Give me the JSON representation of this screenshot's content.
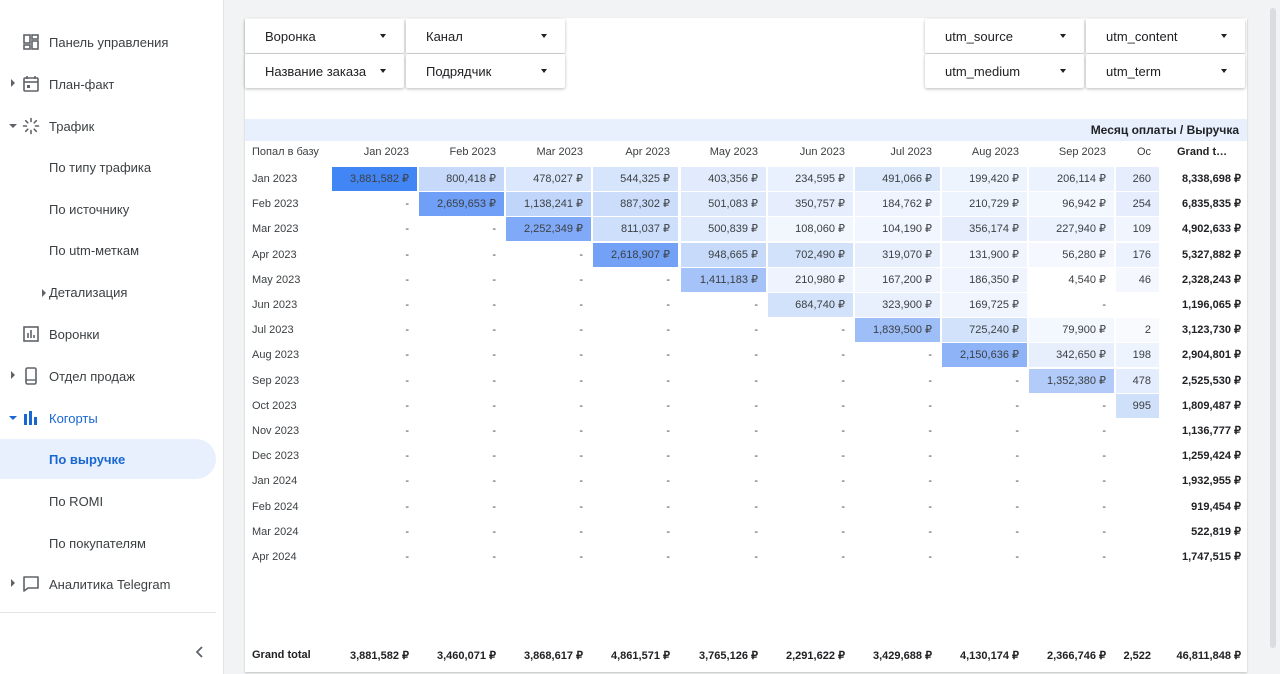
{
  "sidebar": {
    "items": [
      {
        "label": "Панель управления",
        "icon": "dashboard-icon"
      },
      {
        "label": "План-факт",
        "icon": "calendar-icon"
      },
      {
        "label": "Трафик",
        "icon": "traffic-icon"
      },
      {
        "label": "По типу трафика"
      },
      {
        "label": "По источнику"
      },
      {
        "label": "По utm-меткам"
      },
      {
        "label": "Детализация"
      },
      {
        "label": "Воронки",
        "icon": "funnel-chart-icon"
      },
      {
        "label": "Отдел продаж",
        "icon": "phone-icon"
      },
      {
        "label": "Когорты",
        "icon": "bar-chart-icon"
      },
      {
        "label": "По выручке"
      },
      {
        "label": "По ROMI"
      },
      {
        "label": "По покупателям"
      },
      {
        "label": "Аналитика Telegram",
        "icon": "chat-icon"
      }
    ],
    "collapse_icon": "chevron-left-icon"
  },
  "filters": {
    "funnel": "Воронка",
    "channel": "Канал",
    "order_name": "Название заказа",
    "contractor": "Подрядчик",
    "utm_source": "utm_source",
    "utm_content": "utm_content",
    "utm_medium": "utm_medium",
    "utm_term": "utm_term"
  },
  "table": {
    "title": "Месяц оплаты / Выручка",
    "row_header": "Попал в базу",
    "columns": [
      "Jan 2023",
      "Feb 2023",
      "Mar 2023",
      "Apr 2023",
      "May 2023",
      "Jun 2023",
      "Jul 2023",
      "Aug 2023",
      "Sep 2023",
      "Oc"
    ],
    "grand_total_header": "Grand t…",
    "rows": [
      {
        "label": "Jan 2023",
        "cells": [
          "3,881,582 ₽",
          "800,418 ₽",
          "478,027 ₽",
          "544,325 ₽",
          "403,356 ₽",
          "234,595 ₽",
          "491,066 ₽",
          "199,420 ₽",
          "206,114 ₽",
          "260"
        ],
        "total": "8,338,698 ₽"
      },
      {
        "label": "Feb 2023",
        "cells": [
          "-",
          "2,659,653 ₽",
          "1,138,241 ₽",
          "887,302 ₽",
          "501,083 ₽",
          "350,757 ₽",
          "184,762 ₽",
          "210,729 ₽",
          "96,942 ₽",
          "254"
        ],
        "total": "6,835,835 ₽"
      },
      {
        "label": "Mar 2023",
        "cells": [
          "-",
          "-",
          "2,252,349 ₽",
          "811,037 ₽",
          "500,839 ₽",
          "108,060 ₽",
          "104,190 ₽",
          "356,174 ₽",
          "227,940 ₽",
          "109"
        ],
        "total": "4,902,633 ₽"
      },
      {
        "label": "Apr 2023",
        "cells": [
          "-",
          "-",
          "-",
          "2,618,907 ₽",
          "948,665 ₽",
          "702,490 ₽",
          "319,070 ₽",
          "131,900 ₽",
          "56,280 ₽",
          "176"
        ],
        "total": "5,327,882 ₽"
      },
      {
        "label": "May 2023",
        "cells": [
          "-",
          "-",
          "-",
          "-",
          "1,411,183 ₽",
          "210,980 ₽",
          "167,200 ₽",
          "186,350 ₽",
          "4,540 ₽",
          "46"
        ],
        "total": "2,328,243 ₽"
      },
      {
        "label": "Jun 2023",
        "cells": [
          "-",
          "-",
          "-",
          "-",
          "-",
          "684,740 ₽",
          "323,900 ₽",
          "169,725 ₽",
          "-",
          ""
        ],
        "total": "1,196,065 ₽"
      },
      {
        "label": "Jul 2023",
        "cells": [
          "-",
          "-",
          "-",
          "-",
          "-",
          "-",
          "1,839,500 ₽",
          "725,240 ₽",
          "79,900 ₽",
          "2"
        ],
        "total": "3,123,730 ₽"
      },
      {
        "label": "Aug 2023",
        "cells": [
          "-",
          "-",
          "-",
          "-",
          "-",
          "-",
          "-",
          "2,150,636 ₽",
          "342,650 ₽",
          "198"
        ],
        "total": "2,904,801 ₽"
      },
      {
        "label": "Sep 2023",
        "cells": [
          "-",
          "-",
          "-",
          "-",
          "-",
          "-",
          "-",
          "-",
          "1,352,380 ₽",
          "478"
        ],
        "total": "2,525,530 ₽"
      },
      {
        "label": "Oct 2023",
        "cells": [
          "-",
          "-",
          "-",
          "-",
          "-",
          "-",
          "-",
          "-",
          "-",
          "995"
        ],
        "total": "1,809,487 ₽"
      },
      {
        "label": "Nov 2023",
        "cells": [
          "-",
          "-",
          "-",
          "-",
          "-",
          "-",
          "-",
          "-",
          "-",
          ""
        ],
        "total": "1,136,777 ₽"
      },
      {
        "label": "Dec 2023",
        "cells": [
          "-",
          "-",
          "-",
          "-",
          "-",
          "-",
          "-",
          "-",
          "-",
          ""
        ],
        "total": "1,259,424 ₽"
      },
      {
        "label": "Jan 2024",
        "cells": [
          "-",
          "-",
          "-",
          "-",
          "-",
          "-",
          "-",
          "-",
          "-",
          ""
        ],
        "total": "1,932,955 ₽"
      },
      {
        "label": "Feb 2024",
        "cells": [
          "-",
          "-",
          "-",
          "-",
          "-",
          "-",
          "-",
          "-",
          "-",
          ""
        ],
        "total": "919,454 ₽"
      },
      {
        "label": "Mar 2024",
        "cells": [
          "-",
          "-",
          "-",
          "-",
          "-",
          "-",
          "-",
          "-",
          "-",
          ""
        ],
        "total": "522,819 ₽"
      },
      {
        "label": "Apr 2024",
        "cells": [
          "-",
          "-",
          "-",
          "-",
          "-",
          "-",
          "-",
          "-",
          "-",
          ""
        ],
        "total": "1,747,515 ₽"
      }
    ],
    "grand_total_label": "Grand total",
    "grand_totals": [
      "3,881,582 ₽",
      "3,460,071 ₽",
      "3,868,617 ₽",
      "4,861,571 ₽",
      "3,765,126 ₽",
      "2,291,622 ₽",
      "3,429,688 ₽",
      "4,130,174 ₽",
      "2,366,746 ₽",
      "2,522"
    ],
    "grand_total_all": "46,811,848 ₽"
  },
  "heat": [
    [
      "#4285f4",
      "#c6d9fa",
      "#dbe7fc",
      "#d7e5fc",
      "#e1ebfd",
      "#eaf1fe",
      "#dce8fc",
      "#eef4fe",
      "#edf3fe",
      "#e6eefd"
    ],
    [
      null,
      "#6f9ff6",
      "#c0d5fa",
      "#ccddfb",
      "#deeafc",
      "#e6eefd",
      "#eff4fe",
      "#eef4fe",
      "#f3f7fe",
      "#e6eefd"
    ],
    [
      null,
      null,
      "#80aaf7",
      "#cedffb",
      "#dfeafd",
      "#f2f7fe",
      "#f2f6fe",
      "#e6eefd",
      "#ecf2fe",
      "#f1f6fe"
    ],
    [
      null,
      null,
      null,
      "#73a1f6",
      "#c7dafa",
      "#d3e2fb",
      "#e7effd",
      "#f1f6fe",
      "#f5f8fe",
      "#ecf2fe"
    ],
    [
      null,
      null,
      null,
      null,
      "#a6c3f9",
      "#eef3fe",
      "#f0f5fe",
      "#eff4fe",
      null,
      "#f4f8fe"
    ],
    [
      null,
      null,
      null,
      null,
      null,
      "#d3e2fb",
      "#e8effd",
      "#f0f5fe",
      null,
      null
    ],
    [
      null,
      null,
      null,
      null,
      null,
      null,
      "#9ebef8",
      "#d3e2fb",
      "#f3f7fe",
      "#f8fafe"
    ],
    [
      null,
      null,
      null,
      null,
      null,
      null,
      null,
      "#8eb3f7",
      "#e7effd",
      "#eef4fe"
    ],
    [
      null,
      null,
      null,
      null,
      null,
      null,
      null,
      null,
      "#b2cbf9",
      "#e4edfd"
    ],
    [
      null,
      null,
      null,
      null,
      null,
      null,
      null,
      null,
      null,
      "#cfe0fb"
    ]
  ]
}
